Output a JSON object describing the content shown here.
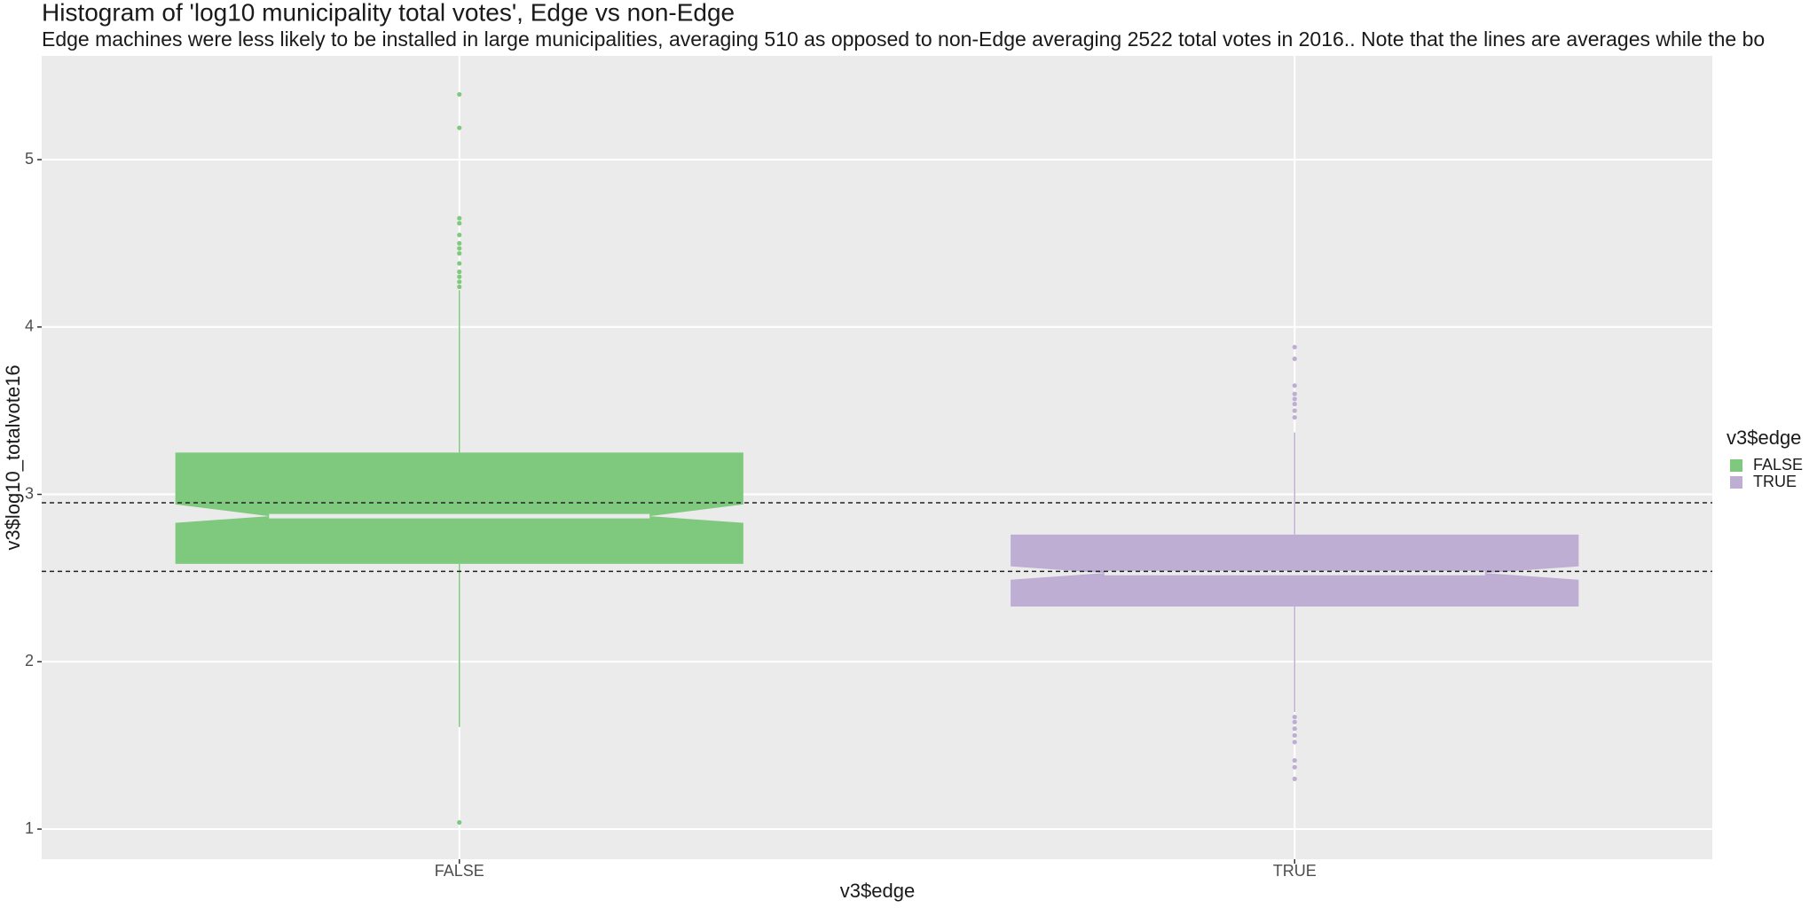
{
  "chart_data": {
    "type": "boxplot",
    "title": "Histogram of 'log10 municipality total votes', Edge vs non-Edge",
    "subtitle": "Edge machines were less likely to be installed in large municipalities, averaging 510  as opposed to non-Edge averaging 2522 total votes in 2016.. Note that the lines are averages while the bo",
    "x_label": "v3$edge",
    "y_label": "v3$log10_totalvote16",
    "legend_title": "v3$edge",
    "legend_position": "right",
    "categories": [
      "FALSE",
      "TRUE"
    ],
    "ylim": [
      0.82,
      5.62
    ],
    "yticks": [
      1,
      2,
      3,
      4,
      5
    ],
    "grid": true,
    "hlines": [
      2.95,
      2.54
    ],
    "series": [
      {
        "name": "FALSE",
        "color": "#7fc97f",
        "whisker_low": 1.61,
        "q1": 2.585,
        "notch_low": 2.83,
        "median": 2.87,
        "notch_high": 2.94,
        "q3": 3.25,
        "whisker_high": 4.22,
        "outliers": [
          5.39,
          5.19,
          4.65,
          4.62,
          4.55,
          4.5,
          4.47,
          4.44,
          4.38,
          4.33,
          4.3,
          4.27,
          4.24,
          1.04
        ]
      },
      {
        "name": "TRUE",
        "color": "#beaed4",
        "whisker_low": 1.7,
        "q1": 2.33,
        "notch_low": 2.49,
        "median": 2.53,
        "notch_high": 2.57,
        "q3": 2.76,
        "whisker_high": 3.37,
        "outliers": [
          3.88,
          3.81,
          3.65,
          3.6,
          3.57,
          3.54,
          3.5,
          3.46,
          1.67,
          1.64,
          1.6,
          1.56,
          1.52,
          1.41,
          1.37,
          1.3
        ]
      }
    ]
  }
}
